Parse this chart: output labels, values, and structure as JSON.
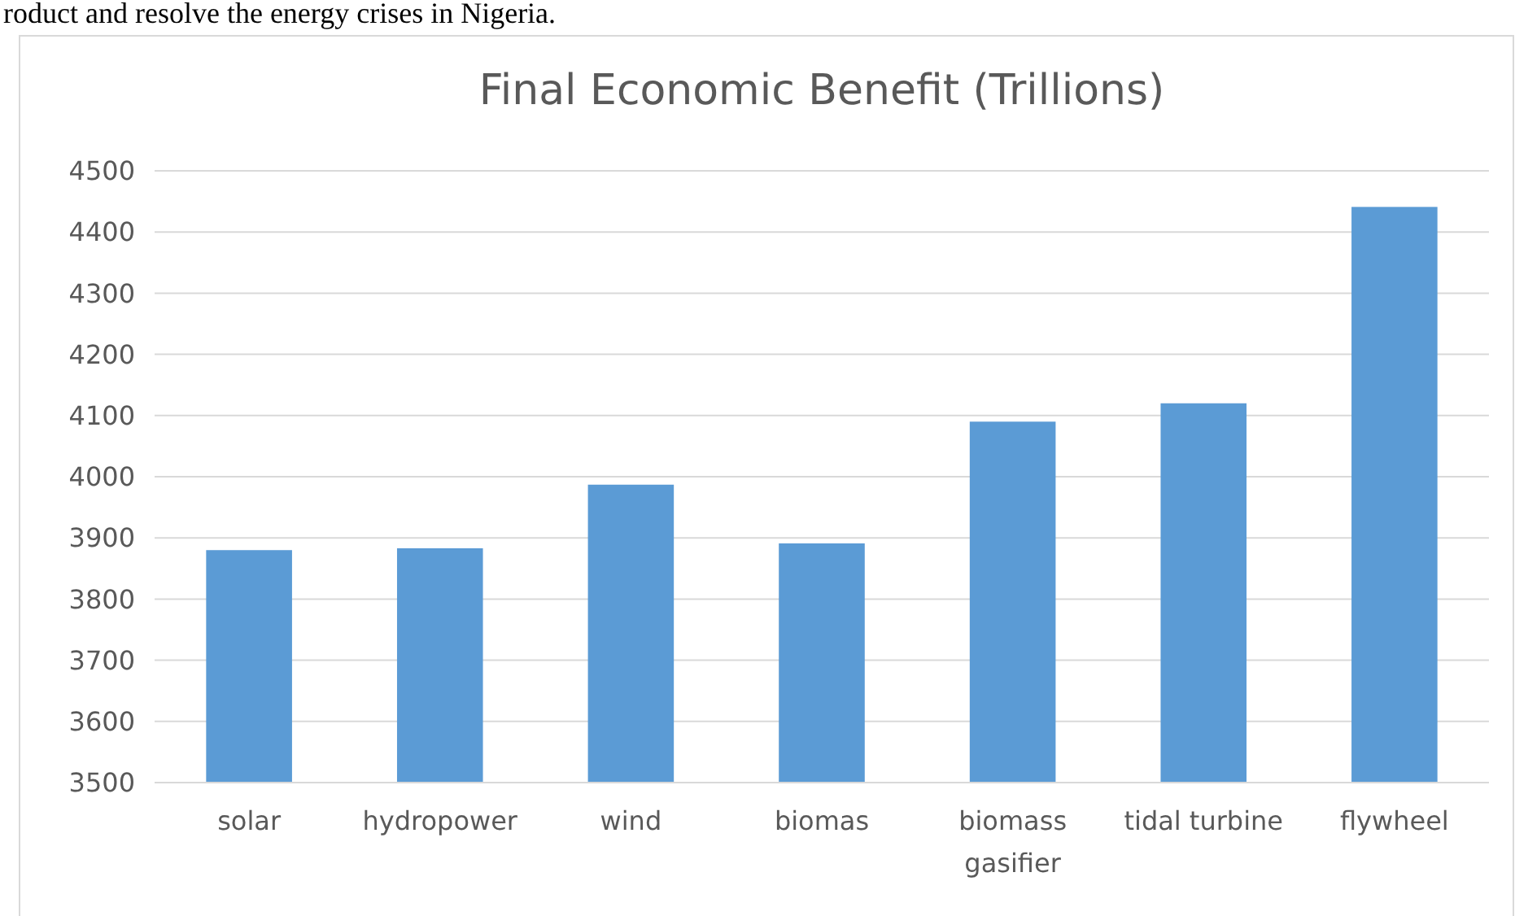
{
  "chart_data": {
    "type": "bar",
    "title": "Final Economic Benefit (Trillions)",
    "annotations": [
      "roduct and resolve the energy crises in Nigeria."
    ],
    "categories": [
      "solar",
      "hydropower",
      "wind",
      "biomas",
      "biomass gasifier",
      "tidal turbine",
      "flywheel"
    ],
    "values": [
      3880,
      3883,
      3987,
      3891,
      4090,
      4120,
      4441
    ],
    "color": "#5b9bd5",
    "ylim": [
      3500,
      4500
    ],
    "yticks": [
      3500,
      3600,
      3700,
      3800,
      3900,
      4000,
      4100,
      4200,
      4300,
      4400,
      4500
    ],
    "grid": "y"
  }
}
